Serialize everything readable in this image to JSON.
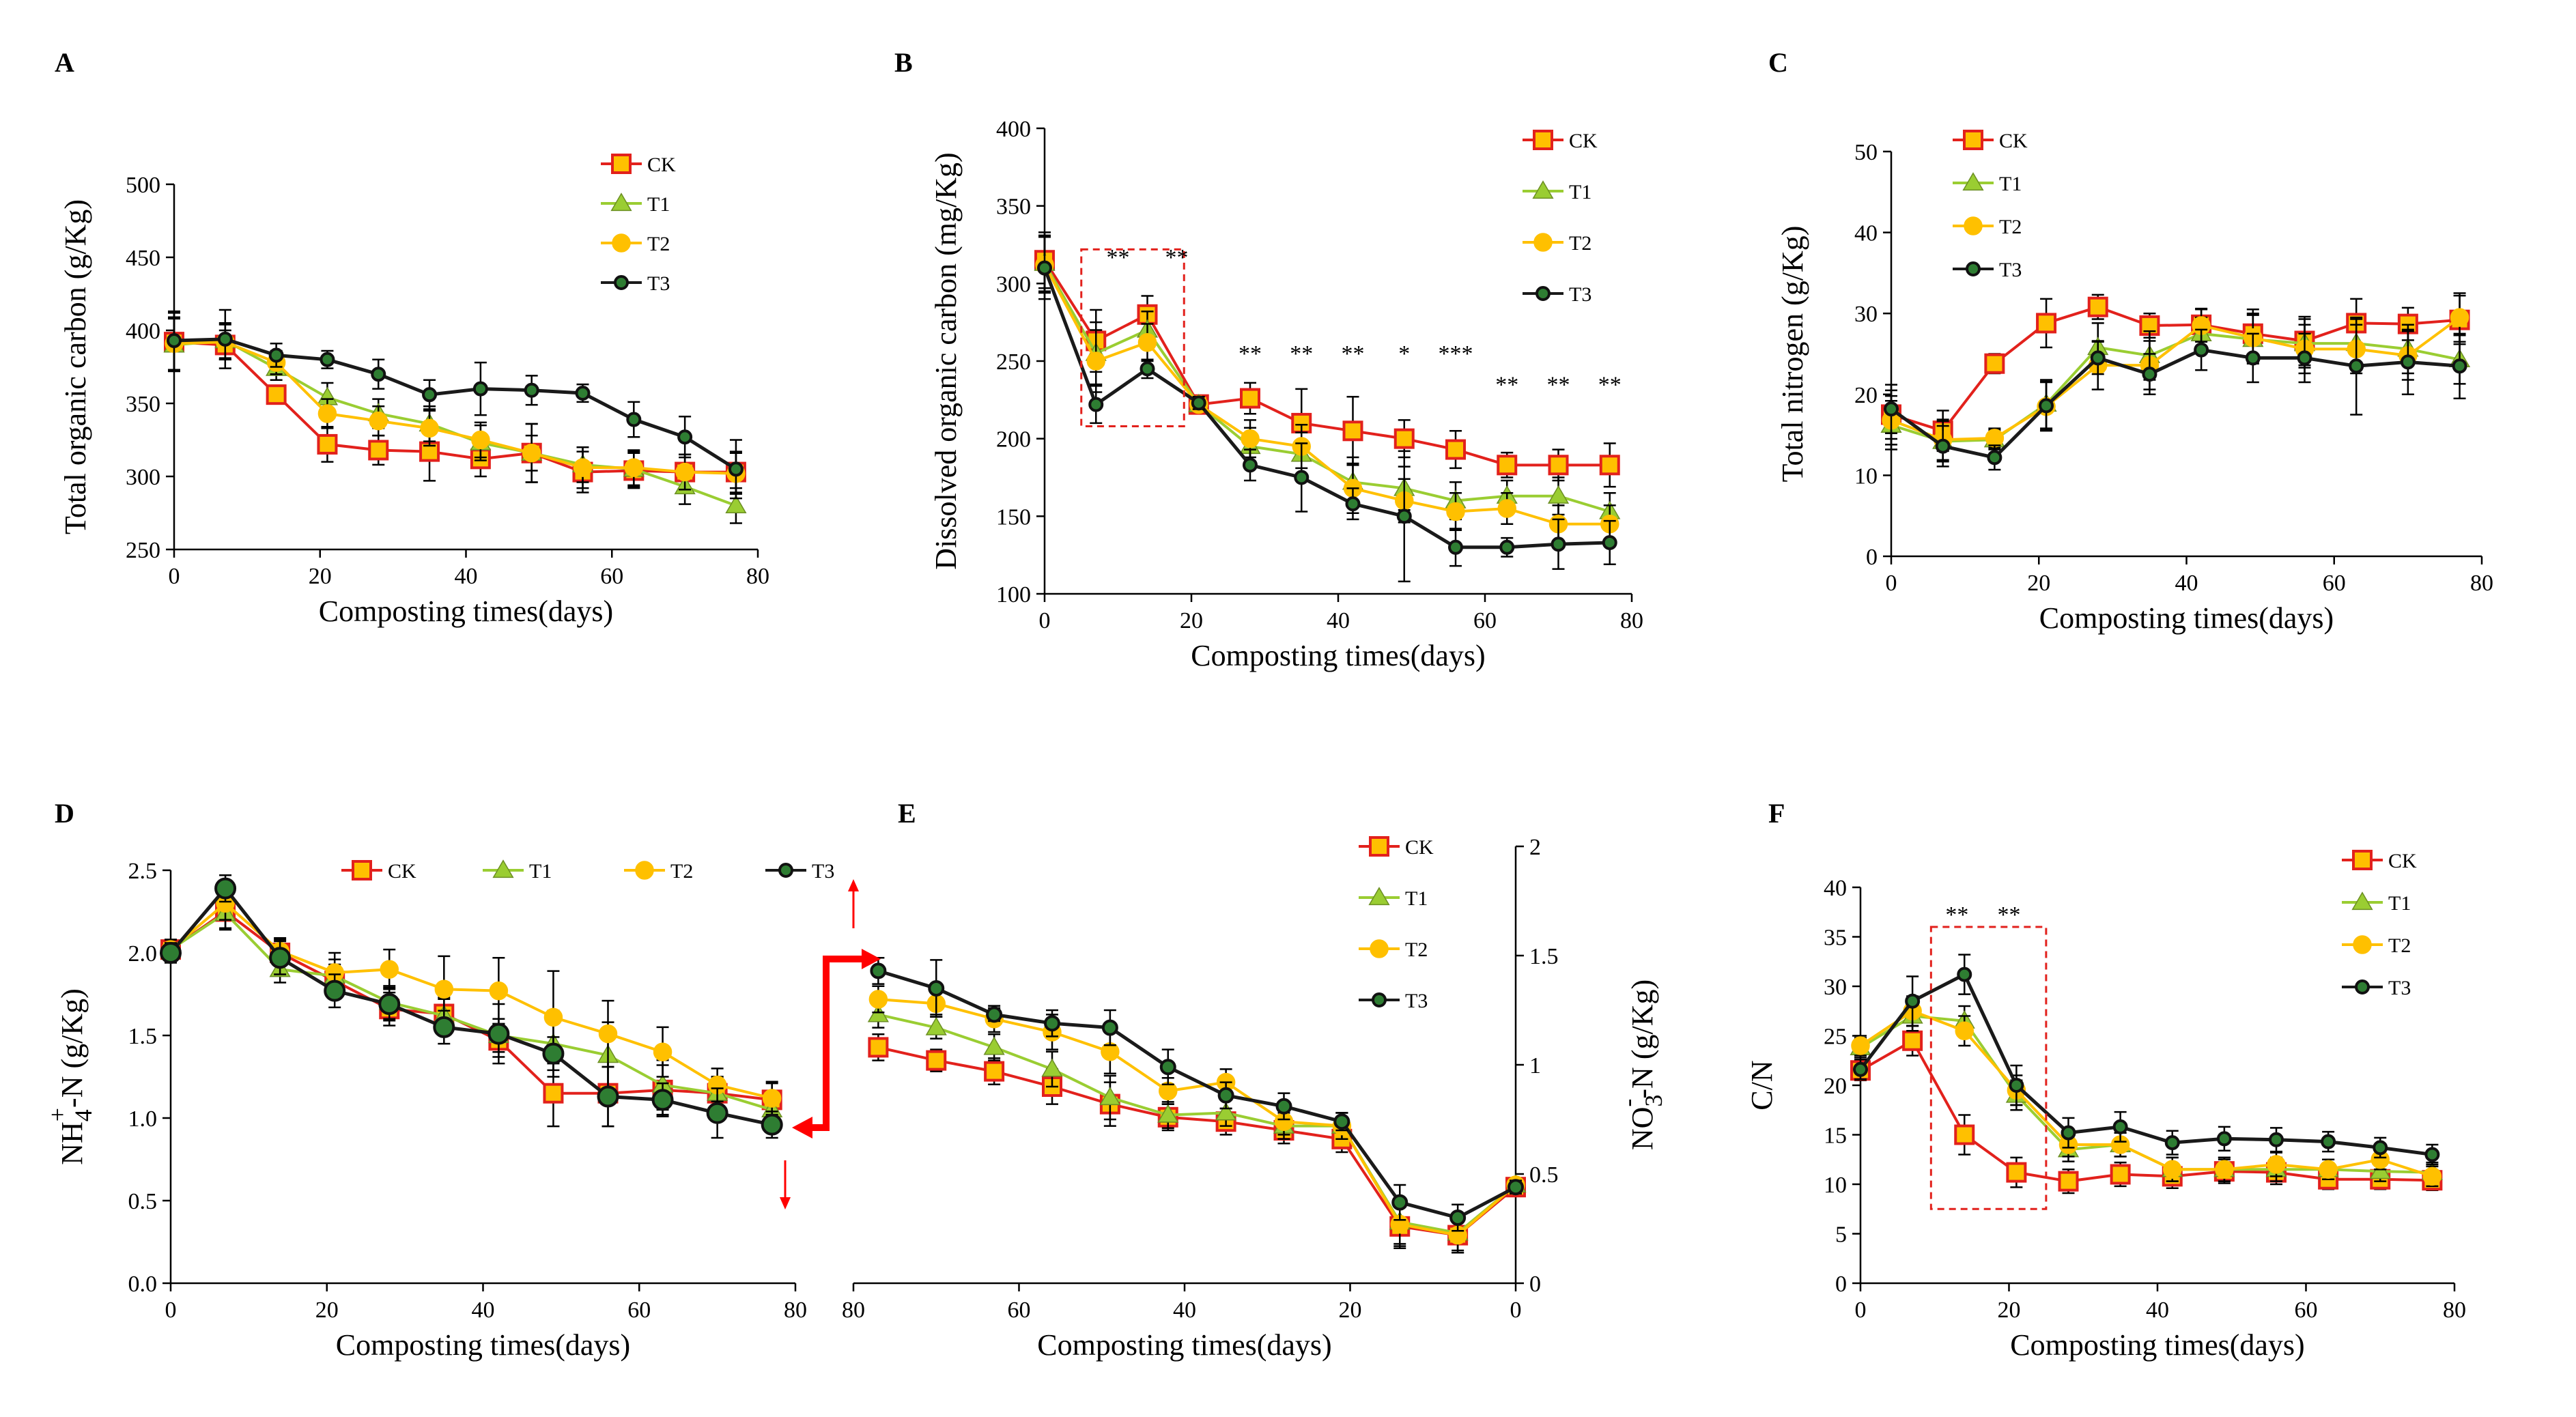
{
  "figure": {
    "colors": {
      "CK": "#E2211C",
      "T1": "#9ACD32",
      "T2": "#FFC000",
      "T3": "#1A1A1A",
      "arrow": "#FF0000",
      "highlight": "#E2211C"
    }
  },
  "chart_data": [
    {
      "panel": "A",
      "type": "line",
      "xlabel": "Composting times(days)",
      "ylabel": "Total organic carbon (g/Kg)",
      "xlim": [
        0,
        80
      ],
      "ylim": [
        250,
        500
      ],
      "xticks": [
        0,
        20,
        40,
        60,
        80
      ],
      "yticks": [
        250,
        300,
        350,
        400,
        450,
        500
      ],
      "x": [
        0,
        7,
        14,
        21,
        28,
        35,
        42,
        49,
        56,
        63,
        70,
        77
      ],
      "legend": "top-right",
      "series": [
        {
          "name": "CK",
          "values": [
            392,
            390,
            356,
            322,
            318,
            317,
            312,
            316,
            303,
            304,
            303,
            303
          ],
          "err": [
            20,
            10,
            6,
            12,
            10,
            20,
            12,
            20,
            14,
            12,
            12,
            14
          ]
        },
        {
          "name": "T1",
          "values": [
            390,
            393,
            374,
            354,
            343,
            336,
            323,
            316,
            308,
            305,
            293,
            280
          ],
          "err": [
            18,
            12,
            8,
            10,
            10,
            12,
            12,
            12,
            12,
            12,
            12,
            12
          ]
        },
        {
          "name": "T2",
          "values": [
            391,
            392,
            378,
            343,
            338,
            333,
            325,
            316,
            306,
            306,
            303,
            302
          ],
          "err": [
            18,
            12,
            8,
            10,
            10,
            12,
            12,
            20,
            14,
            12,
            12,
            14
          ]
        },
        {
          "name": "T3",
          "values": [
            393,
            394,
            383,
            380,
            370,
            356,
            360,
            359,
            357,
            339,
            327,
            305
          ],
          "err": [
            20,
            20,
            8,
            6,
            10,
            10,
            18,
            10,
            6,
            12,
            14,
            20
          ]
        }
      ]
    },
    {
      "panel": "B",
      "type": "line",
      "xlabel": "Composting times(days)",
      "ylabel": "Dissolved organic carbon (mg/Kg)",
      "xlim": [
        0,
        80
      ],
      "ylim": [
        100,
        400
      ],
      "xticks": [
        0,
        20,
        40,
        60,
        80
      ],
      "yticks": [
        100,
        150,
        200,
        250,
        300,
        350,
        400
      ],
      "x": [
        0,
        7,
        14,
        21,
        28,
        35,
        42,
        49,
        56,
        63,
        70,
        77
      ],
      "legend": "top-right",
      "series": [
        {
          "name": "CK",
          "values": [
            315,
            263,
            280,
            222,
            226,
            210,
            205,
            200,
            193,
            183,
            183,
            183
          ],
          "err": [
            18,
            20,
            12,
            4,
            10,
            22,
            22,
            12,
            12,
            8,
            10,
            14
          ]
        },
        {
          "name": "T1",
          "values": [
            313,
            255,
            270,
            222,
            195,
            190,
            172,
            168,
            160,
            163,
            163,
            153
          ],
          "err": [
            18,
            20,
            12,
            4,
            12,
            14,
            16,
            14,
            12,
            10,
            12,
            12
          ]
        },
        {
          "name": "T2",
          "values": [
            312,
            250,
            262,
            222,
            200,
            195,
            168,
            160,
            153,
            155,
            145,
            145
          ],
          "err": [
            18,
            20,
            12,
            4,
            12,
            14,
            16,
            14,
            12,
            10,
            12,
            12
          ]
        },
        {
          "name": "T3",
          "values": [
            310,
            222,
            245,
            223,
            183,
            175,
            158,
            150,
            130,
            130,
            132,
            133
          ],
          "err": [
            20,
            12,
            6,
            4,
            10,
            22,
            10,
            42,
            12,
            6,
            16,
            14
          ]
        }
      ],
      "annotations": [
        {
          "text": "**",
          "x": 10,
          "y": 312
        },
        {
          "text": "**",
          "x": 18,
          "y": 312
        },
        {
          "text": "**",
          "x": 28,
          "y": 250
        },
        {
          "text": "**",
          "x": 35,
          "y": 250
        },
        {
          "text": "**",
          "x": 42,
          "y": 250
        },
        {
          "text": "*",
          "x": 49,
          "y": 250
        },
        {
          "text": "***",
          "x": 56,
          "y": 250
        },
        {
          "text": "**",
          "x": 63,
          "y": 230
        },
        {
          "text": "**",
          "x": 70,
          "y": 230
        },
        {
          "text": "**",
          "x": 77,
          "y": 230
        }
      ],
      "highlight_box": {
        "x": [
          5,
          19
        ],
        "y": [
          208,
          322
        ]
      }
    },
    {
      "panel": "C",
      "type": "line",
      "xlabel": "Composting times(days)",
      "ylabel": "Total nitrogen (g/Kg)",
      "xlim": [
        0,
        80
      ],
      "ylim": [
        0,
        50
      ],
      "xticks": [
        0,
        20,
        40,
        60,
        80
      ],
      "yticks": [
        0,
        10,
        20,
        30,
        40,
        50
      ],
      "x": [
        0,
        7,
        14,
        21,
        28,
        35,
        42,
        49,
        56,
        63,
        70,
        77
      ],
      "legend": "top-left",
      "series": [
        {
          "name": "CK",
          "values": [
            17.5,
            15.5,
            23.8,
            28.8,
            30.8,
            28.5,
            28.6,
            27.5,
            26.6,
            28.8,
            28.7,
            29.2
          ],
          "err": [
            3,
            2.5,
            1.2,
            3,
            1.5,
            1.5,
            2,
            3,
            3,
            3,
            2,
            3
          ]
        },
        {
          "name": "T1",
          "values": [
            16.2,
            14.2,
            14.4,
            18.8,
            25.8,
            24.8,
            27.5,
            26.8,
            26.3,
            26.3,
            25.6,
            24.3
          ],
          "err": [
            3,
            2.5,
            1.2,
            3,
            3,
            3,
            2,
            3,
            3,
            3,
            3,
            3
          ]
        },
        {
          "name": "T2",
          "values": [
            16.8,
            14.4,
            14.6,
            18.5,
            23.6,
            23.6,
            28.5,
            27.0,
            25.6,
            25.6,
            24.8,
            29.5
          ],
          "err": [
            3,
            2.5,
            1.2,
            3,
            3,
            3,
            2,
            3,
            3,
            3,
            3,
            3
          ]
        },
        {
          "name": "T3",
          "values": [
            18.2,
            13.6,
            12.2,
            18.6,
            24.5,
            22.5,
            25.5,
            24.5,
            24.5,
            23.5,
            24.0,
            23.5
          ],
          "err": [
            3,
            2.5,
            1.5,
            3,
            2,
            2.5,
            2.5,
            3,
            3,
            6,
            4,
            4
          ]
        }
      ]
    },
    {
      "panel": "D",
      "type": "line",
      "xlabel": "Composting times(days)",
      "ylabel": "NH4+-N (g/Kg)",
      "ylabel_parts": {
        "base": "NH",
        "sub": "4",
        "sup": "+",
        "rest": "-N (g/Kg)"
      },
      "xlim": [
        0,
        80
      ],
      "ylim": [
        0,
        2.5
      ],
      "xticks": [
        0,
        20,
        40,
        60,
        80
      ],
      "yticks": [
        0.0,
        0.5,
        1.0,
        1.5,
        2.0,
        2.5
      ],
      "ytick_labels": [
        "0.0",
        "0.5",
        "1.0",
        "1.5",
        "2.0",
        "2.5"
      ],
      "x": [
        0,
        7,
        14,
        21,
        28,
        35,
        42,
        49,
        56,
        63,
        70,
        77
      ],
      "legend": "top",
      "series": [
        {
          "name": "CK",
          "values": [
            2.02,
            2.25,
            2.0,
            1.83,
            1.66,
            1.63,
            1.47,
            1.15,
            1.15,
            1.17,
            1.15,
            1.11
          ],
          "err": [
            0.06,
            0.1,
            0.08,
            0.1,
            0.1,
            0.1,
            0.1,
            0.2,
            0.2,
            0.15,
            0.1,
            0.1
          ]
        },
        {
          "name": "T1",
          "values": [
            2.02,
            2.24,
            1.9,
            1.86,
            1.7,
            1.62,
            1.5,
            1.45,
            1.38,
            1.2,
            1.15,
            1.05
          ],
          "err": [
            0.06,
            0.1,
            0.08,
            0.1,
            0.1,
            0.1,
            0.1,
            0.2,
            0.2,
            0.15,
            0.1,
            0.1
          ]
        },
        {
          "name": "T2",
          "values": [
            2.02,
            2.3,
            2.01,
            1.88,
            1.9,
            1.78,
            1.77,
            1.61,
            1.51,
            1.4,
            1.2,
            1.12
          ],
          "err": [
            0.06,
            0.1,
            0.08,
            0.12,
            0.12,
            0.2,
            0.2,
            0.28,
            0.2,
            0.15,
            0.1,
            0.1
          ]
        },
        {
          "name": "T3",
          "values": [
            2.0,
            2.39,
            1.97,
            1.77,
            1.69,
            1.55,
            1.51,
            1.39,
            1.13,
            1.11,
            1.03,
            0.96
          ],
          "err": [
            0.06,
            0.08,
            0.1,
            0.1,
            0.1,
            0.1,
            0.18,
            0.1,
            0.18,
            0.1,
            0.15,
            0.08
          ]
        }
      ]
    },
    {
      "panel": "E",
      "type": "line",
      "xlabel": "Composting times(days)",
      "ylabel": "NO3--N (g/Kg)",
      "ylabel_parts": {
        "base": "NO",
        "sub": "3",
        "sup": "-",
        "rest": "-N (g/Kg)"
      },
      "x_reversed": true,
      "yaxis_side": "right",
      "xlim": [
        80,
        0
      ],
      "ylim": [
        0,
        2
      ],
      "xticks": [
        80,
        60,
        40,
        20,
        0
      ],
      "yticks": [
        0,
        0.5,
        1,
        1.5,
        2
      ],
      "ytick_labels": [
        "0",
        "0.5",
        "1",
        "1.5",
        "2"
      ],
      "x": [
        77,
        70,
        63,
        56,
        49,
        42,
        35,
        28,
        21,
        14,
        7,
        0
      ],
      "legend": "top-right",
      "series": [
        {
          "name": "CK",
          "values": [
            1.08,
            1.02,
            0.97,
            0.9,
            0.82,
            0.76,
            0.74,
            0.7,
            0.66,
            0.26,
            0.22,
            0.44
          ],
          "err": [
            0.06,
            0.05,
            0.06,
            0.08,
            0.1,
            0.06,
            0.06,
            0.06,
            0.06,
            0.1,
            0.08,
            0.03
          ]
        },
        {
          "name": "T1",
          "values": [
            1.23,
            1.17,
            1.08,
            0.98,
            0.85,
            0.77,
            0.78,
            0.72,
            0.72,
            0.28,
            0.23,
            0.45
          ],
          "err": [
            0.06,
            0.05,
            0.06,
            0.08,
            0.1,
            0.06,
            0.06,
            0.06,
            0.06,
            0.1,
            0.08,
            0.03
          ]
        },
        {
          "name": "T2",
          "values": [
            1.3,
            1.28,
            1.21,
            1.15,
            1.06,
            0.88,
            0.92,
            0.74,
            0.72,
            0.27,
            0.22,
            0.45
          ],
          "err": [
            0.06,
            0.05,
            0.06,
            0.08,
            0.1,
            0.06,
            0.06,
            0.06,
            0.06,
            0.1,
            0.08,
            0.03
          ]
        },
        {
          "name": "T3",
          "values": [
            1.43,
            1.35,
            1.23,
            1.19,
            1.17,
            0.99,
            0.86,
            0.81,
            0.74,
            0.37,
            0.3,
            0.44
          ],
          "err": [
            0.06,
            0.13,
            0.03,
            0.06,
            0.08,
            0.08,
            0.06,
            0.06,
            0.04,
            0.08,
            0.06,
            0.03
          ]
        }
      ]
    },
    {
      "panel": "F",
      "type": "line",
      "xlabel": "Composting times(days)",
      "ylabel": "C/N",
      "xlim": [
        0,
        80
      ],
      "ylim": [
        0,
        40
      ],
      "xticks": [
        0,
        20,
        40,
        60,
        80
      ],
      "yticks": [
        0,
        5,
        10,
        15,
        20,
        25,
        30,
        35,
        40
      ],
      "x": [
        0,
        7,
        14,
        21,
        28,
        35,
        42,
        49,
        56,
        63,
        70,
        77
      ],
      "legend": "top-right",
      "series": [
        {
          "name": "CK",
          "values": [
            21.5,
            24.5,
            15.0,
            11.2,
            10.3,
            11.0,
            10.8,
            11.3,
            11.2,
            10.5,
            10.5,
            10.4
          ],
          "err": [
            1,
            1.5,
            2,
            1.5,
            1.2,
            1.2,
            1.2,
            1.2,
            1.2,
            1,
            1,
            1
          ]
        },
        {
          "name": "T1",
          "values": [
            23.8,
            27.0,
            26.5,
            19.0,
            13.5,
            14.0,
            11.5,
            11.5,
            11.5,
            11.5,
            11.3,
            11.2
          ],
          "err": [
            1,
            1.5,
            1.5,
            1.5,
            1.2,
            1.2,
            1.2,
            1.2,
            1.2,
            1,
            1,
            1
          ]
        },
        {
          "name": "T2",
          "values": [
            24.0,
            27.5,
            25.5,
            19.5,
            14.0,
            14.0,
            11.5,
            11.5,
            12.0,
            11.5,
            12.5,
            10.8
          ],
          "err": [
            1,
            1.5,
            1.5,
            1.5,
            1.2,
            1.2,
            1.2,
            1.2,
            1.2,
            1,
            1,
            1
          ]
        },
        {
          "name": "T3",
          "values": [
            21.6,
            28.5,
            31.2,
            20.0,
            15.2,
            15.8,
            14.2,
            14.6,
            14.5,
            14.3,
            13.7,
            13.0
          ],
          "err": [
            1,
            2.5,
            2,
            2,
            1.5,
            1.5,
            1.2,
            1.2,
            1.2,
            1,
            1,
            1
          ]
        }
      ],
      "annotations": [
        {
          "text": "**",
          "x": 13,
          "y": 36.5
        },
        {
          "text": "**",
          "x": 20,
          "y": 36.5
        }
      ],
      "highlight_box": {
        "x": [
          9.5,
          25
        ],
        "y": [
          7.5,
          36
        ]
      }
    }
  ]
}
